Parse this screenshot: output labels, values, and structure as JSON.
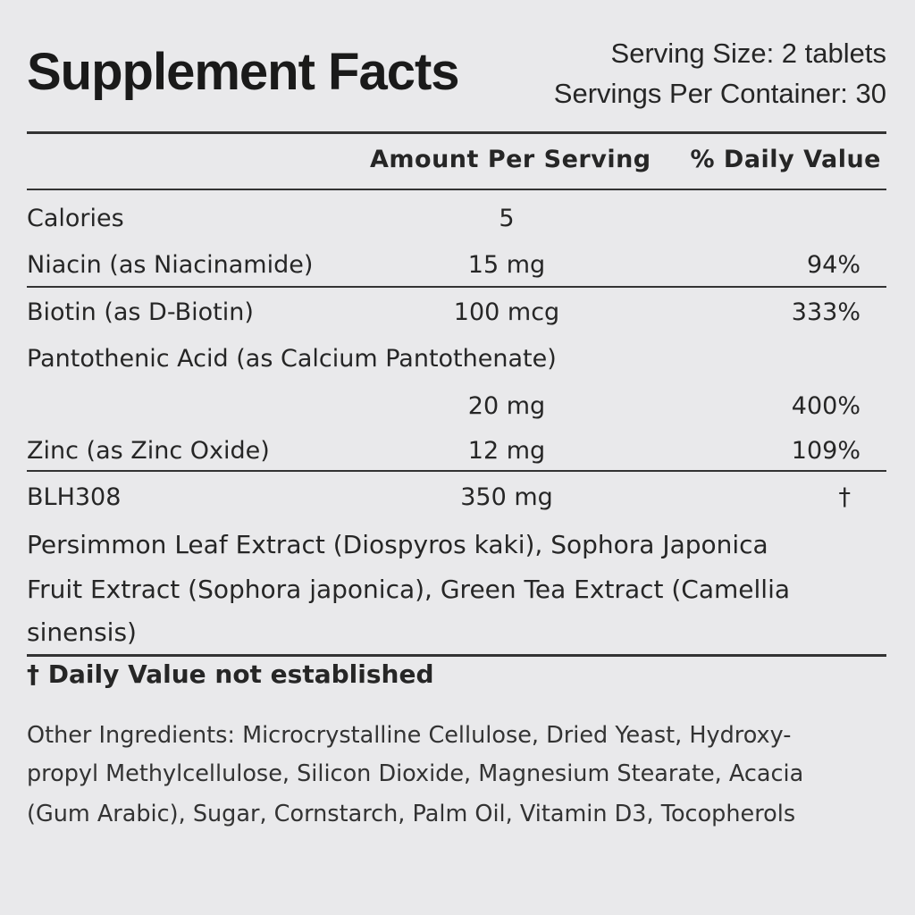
{
  "header": {
    "title": "Supplement Facts",
    "serving_size": "Serving Size: 2 tablets",
    "servings_per_container": "Servings Per Container: 30"
  },
  "table": {
    "columns": [
      "Amount Per Serving",
      "% Daily Value"
    ],
    "rows": [
      {
        "name": "Calories",
        "amount": "5"
      },
      {
        "name": "Niacin (as Niacinamide)",
        "amount": "15 mg",
        "dv": "94%"
      },
      {
        "name": "Biotin (as D-Biotin)",
        "amount": "100 mcg",
        "dv": "333%"
      },
      {
        "name": "Pantothenic Acid (as Calcium Pantothenate)",
        "amount": "20 mg",
        "dv": "400%"
      },
      {
        "name": "Zinc (as Zinc Oxide)",
        "amount": "12 mg",
        "dv": "109%"
      },
      {
        "name": "BLH308",
        "amount": "350 mg",
        "dv": "†"
      }
    ]
  },
  "blend_description": {
    "lines": [
      "Persimmon Leaf Extract (Diospyros kaki), Sophora Japonica",
      "Fruit Extract (Sophora japonica), Green Tea Extract (Camellia",
      "sinensis)"
    ]
  },
  "footnote": "† Daily Value not established",
  "other_ingredients": {
    "lines": [
      "Other Ingredients: Microcrystalline Cellulose, Dried Yeast, Hydroxy-",
      "propyl Methylcellulose, Silicon Dioxide, Magnesium Stearate, Acacia",
      "(Gum Arabic), Sugar, Cornstarch, Palm Oil, Vitamin D3, Tocopherols"
    ]
  }
}
